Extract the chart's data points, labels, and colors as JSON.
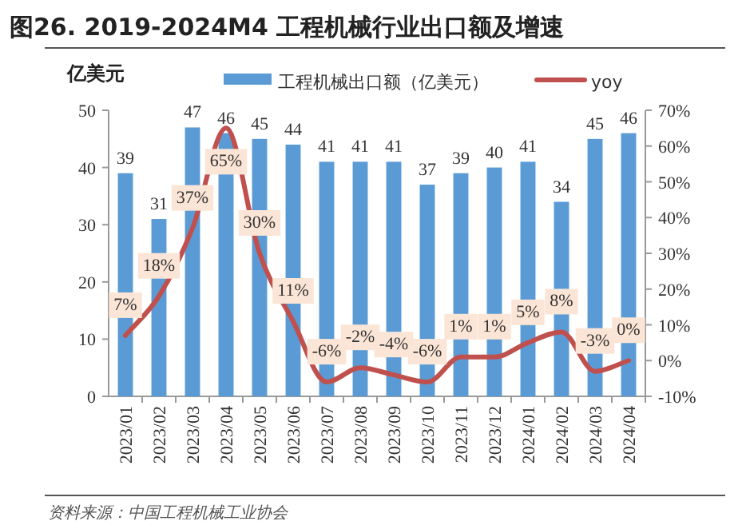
{
  "chart_data": {
    "type": "bar",
    "title": "图26. 2019-2024M4 工程机械行业出口额及增速",
    "ylabel": "亿美元",
    "categories": [
      "2023/01",
      "2023/02",
      "2023/03",
      "2023/04",
      "2023/05",
      "2023/06",
      "2023/07",
      "2023/08",
      "2023/09",
      "2023/10",
      "2023/11",
      "2023/12",
      "2024/01",
      "2024/02",
      "2024/03",
      "2024/04"
    ],
    "series": [
      {
        "name": "工程机械出口额（亿美元）",
        "color": "#5b9bd5",
        "values": [
          39,
          31,
          47,
          46,
          45,
          44,
          41,
          41,
          41,
          37,
          39,
          40,
          41,
          34,
          45,
          46
        ],
        "value_labels": [
          "39",
          "31",
          "47",
          "46",
          "45",
          "44",
          "41",
          "41",
          "41",
          "37",
          "39",
          "40",
          "41",
          "34",
          "45",
          "46"
        ]
      },
      {
        "name": "yoy",
        "type": "line",
        "axis": "y2",
        "color": "#c0504d",
        "values": [
          7,
          18,
          37,
          65,
          30,
          11,
          -6,
          -2,
          -4,
          -6,
          1,
          1,
          5,
          8,
          -3,
          0
        ],
        "value_labels": [
          "7%",
          "18%",
          "37%",
          "65%",
          "30%",
          "11%",
          "-6%",
          "-2%",
          "-4%",
          "-6%",
          "1%",
          "1%",
          "5%",
          "8%",
          "-3%",
          "0%"
        ]
      }
    ],
    "ylim": [
      0,
      50
    ],
    "yticks": [
      0,
      10,
      20,
      30,
      40,
      50
    ],
    "y2lim": [
      -10,
      70
    ],
    "y2ticks": [
      {
        "value": -10,
        "label": "-10%"
      },
      {
        "value": 0,
        "label": "0%"
      },
      {
        "value": 10,
        "label": "10%"
      },
      {
        "value": 20,
        "label": "20%"
      },
      {
        "value": 30,
        "label": "30%"
      },
      {
        "value": 40,
        "label": "40%"
      },
      {
        "value": 50,
        "label": "50%"
      },
      {
        "value": 60,
        "label": "60%"
      },
      {
        "value": 70,
        "label": "70%"
      }
    ],
    "grid": false,
    "legend": "top",
    "marker": "none",
    "line_style": "solid",
    "annotations": [
      "资料来源：中国工程机械工业协会"
    ]
  }
}
